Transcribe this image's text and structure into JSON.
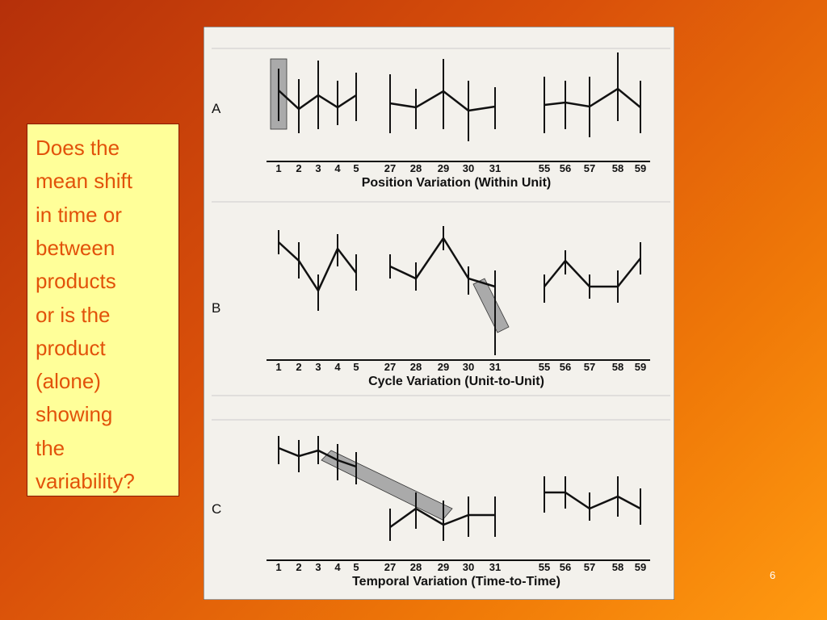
{
  "slide": {
    "question": [
      "Does the",
      "mean shift",
      "in time or",
      "between",
      "products",
      "or is the",
      "product",
      "(alone)",
      "showing",
      "the",
      "variability?"
    ],
    "page_number": "6"
  },
  "figure": {
    "panels": [
      {
        "label": "A",
        "title": "Position Variation (Within Unit)",
        "groups": [
          [
            "1",
            "2",
            "3",
            "4",
            "5"
          ],
          [
            "27",
            "28",
            "29",
            "30",
            "31"
          ],
          [
            "55",
            "56",
            "57",
            "58",
            "59"
          ]
        ]
      },
      {
        "label": "B",
        "title": "Cycle Variation (Unit-to-Unit)",
        "groups": [
          [
            "1",
            "2",
            "3",
            "4",
            "5"
          ],
          [
            "27",
            "28",
            "29",
            "30",
            "31"
          ],
          [
            "55",
            "56",
            "57",
            "58",
            "59"
          ]
        ]
      },
      {
        "label": "C",
        "title": "Temporal Variation (Time-to-Time)",
        "groups": [
          [
            "1",
            "2",
            "3",
            "4",
            "5"
          ],
          [
            "27",
            "28",
            "29",
            "30",
            "31"
          ],
          [
            "55",
            "56",
            "57",
            "58",
            "59"
          ]
        ]
      }
    ]
  }
}
